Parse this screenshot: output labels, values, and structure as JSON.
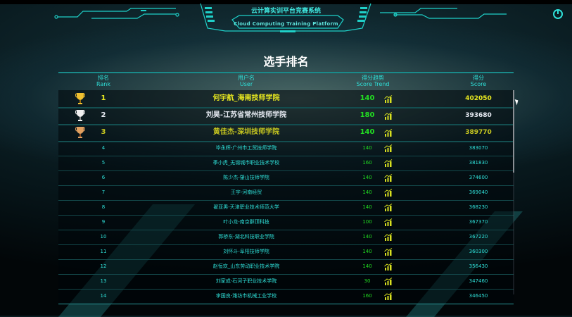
{
  "header": {
    "system_title": "云计算实训平台竞赛系统",
    "system_subtitle": "Cloud Computing Training Platform",
    "power_icon": "power-icon"
  },
  "page_title": "选手排名",
  "colors": {
    "accent": "#2fe0d8",
    "gold": "#e8e020",
    "silver": "#e6eaf2",
    "bronze": "#c8c020",
    "trend_number": "#22dd22"
  },
  "columns": {
    "rank": {
      "zh": "排名",
      "en": "Rank"
    },
    "user": {
      "zh": "用户名",
      "en": "User"
    },
    "trend": {
      "zh": "得分趋势",
      "en": "Score Trend"
    },
    "score": {
      "zh": "得分",
      "en": "Score"
    }
  },
  "rows": [
    {
      "rank": "1",
      "user": "何宇航_海南技师学院",
      "trend": "140",
      "score": "402050",
      "trophy": "gold"
    },
    {
      "rank": "2",
      "user": "刘昊-江苏省常州技师学院",
      "trend": "180",
      "score": "393680",
      "trophy": "silver"
    },
    {
      "rank": "3",
      "user": "黄佳杰-深圳技师学院",
      "trend": "140",
      "score": "389770",
      "trophy": "bronze"
    },
    {
      "rank": "4",
      "user": "毕永辉-广州市工贸技师学院",
      "trend": "140",
      "score": "383070"
    },
    {
      "rank": "5",
      "user": "季小虎_无锡城市职业技术学校",
      "trend": "160",
      "score": "381830"
    },
    {
      "rank": "6",
      "user": "陈少杰-肇山技师学院",
      "trend": "140",
      "score": "374600"
    },
    {
      "rank": "7",
      "user": "王宇-河南经贸",
      "trend": "140",
      "score": "369040"
    },
    {
      "rank": "8",
      "user": "翟亚男-天津职业技术师范大学",
      "trend": "140",
      "score": "368230"
    },
    {
      "rank": "9",
      "user": "叶小龙-南京群顶科技",
      "trend": "100",
      "score": "367370"
    },
    {
      "rank": "10",
      "user": "郭桥东-湖北科技职业学院",
      "trend": "140",
      "score": "367220"
    },
    {
      "rank": "11",
      "user": "刘怀斗-阜阳技师学院",
      "trend": "140",
      "score": "360300"
    },
    {
      "rank": "12",
      "user": "赵恒欢_山东劳动职业技术学院",
      "trend": "140",
      "score": "356430"
    },
    {
      "rank": "13",
      "user": "刘家成-石河子职业技术学院",
      "trend": "30",
      "score": "347460"
    },
    {
      "rank": "14",
      "user": "李国良-潍坊市机械工业学校",
      "trend": "160",
      "score": "346450"
    }
  ]
}
